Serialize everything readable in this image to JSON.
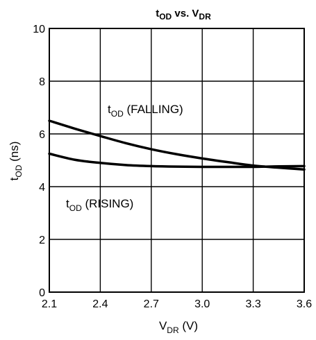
{
  "chart_data": {
    "type": "line",
    "title": {
      "main": "t",
      "sub1": "OD",
      "mid": " vs. V",
      "sub2": "DR"
    },
    "xlabel": {
      "main": "V",
      "sub": "DR",
      "rest": " (V)"
    },
    "ylabel": {
      "main": "t",
      "sub": "OD",
      "rest": " (ns)"
    },
    "xlim": [
      2.1,
      3.6
    ],
    "ylim": [
      0,
      10
    ],
    "xticks": [
      2.1,
      2.4,
      2.7,
      3.0,
      3.3,
      3.6
    ],
    "xtick_labels": [
      "2.1",
      "2.4",
      "2.7",
      "3.0",
      "3.3",
      "3.6"
    ],
    "yticks": [
      0,
      2,
      4,
      6,
      8,
      10
    ],
    "ytick_labels": [
      "0",
      "2",
      "4",
      "6",
      "8",
      "10"
    ],
    "grid": true,
    "series": [
      {
        "label": {
          "main": "t",
          "sub": "OD",
          "rest": " (FALLING)"
        },
        "x": [
          2.1,
          2.25,
          2.4,
          2.55,
          2.7,
          2.85,
          3.0,
          3.15,
          3.3,
          3.45,
          3.6
        ],
        "y": [
          6.5,
          6.2,
          5.92,
          5.65,
          5.42,
          5.23,
          5.07,
          4.93,
          4.8,
          4.72,
          4.65
        ]
      },
      {
        "label": {
          "main": "t",
          "sub": "OD",
          "rest": " (RISING)"
        },
        "x": [
          2.1,
          2.25,
          2.4,
          2.55,
          2.7,
          2.85,
          3.0,
          3.15,
          3.3,
          3.45,
          3.6
        ],
        "y": [
          5.25,
          5.02,
          4.9,
          4.82,
          4.78,
          4.76,
          4.75,
          4.75,
          4.75,
          4.77,
          4.78
        ]
      }
    ]
  }
}
